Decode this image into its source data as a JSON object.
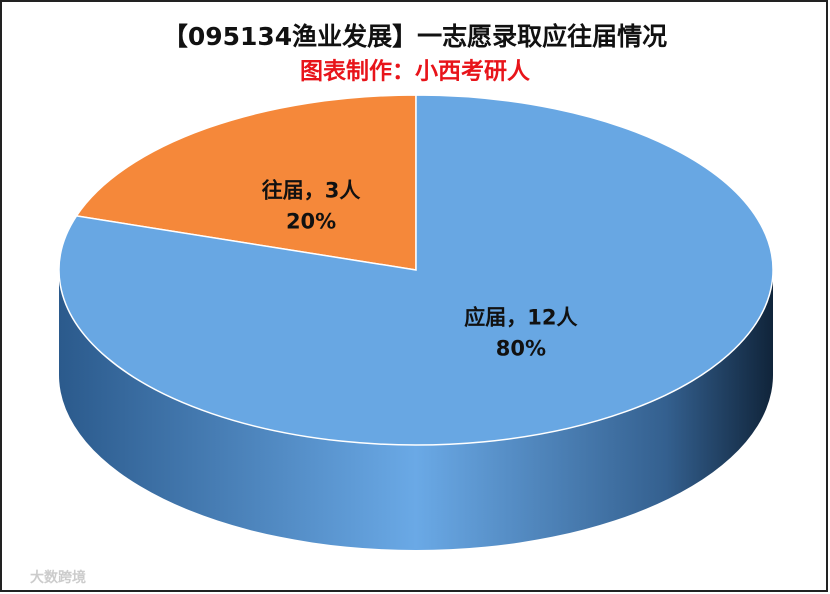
{
  "chart_data": {
    "type": "pie3d",
    "title": "【095134渔业发展】一志愿录取应往届情况",
    "subtitle": "图表制作：小西考研人",
    "categories": [
      "往届",
      "应届"
    ],
    "values": [
      3,
      12
    ],
    "value_labels": [
      "3人",
      "12人"
    ],
    "label_separator": "，",
    "percentages": [
      20,
      80
    ],
    "percentage_labels": [
      "20%",
      "80%"
    ],
    "colors": [
      "#f5883a",
      "#68a7e3"
    ],
    "watermark": "大数跨境"
  }
}
